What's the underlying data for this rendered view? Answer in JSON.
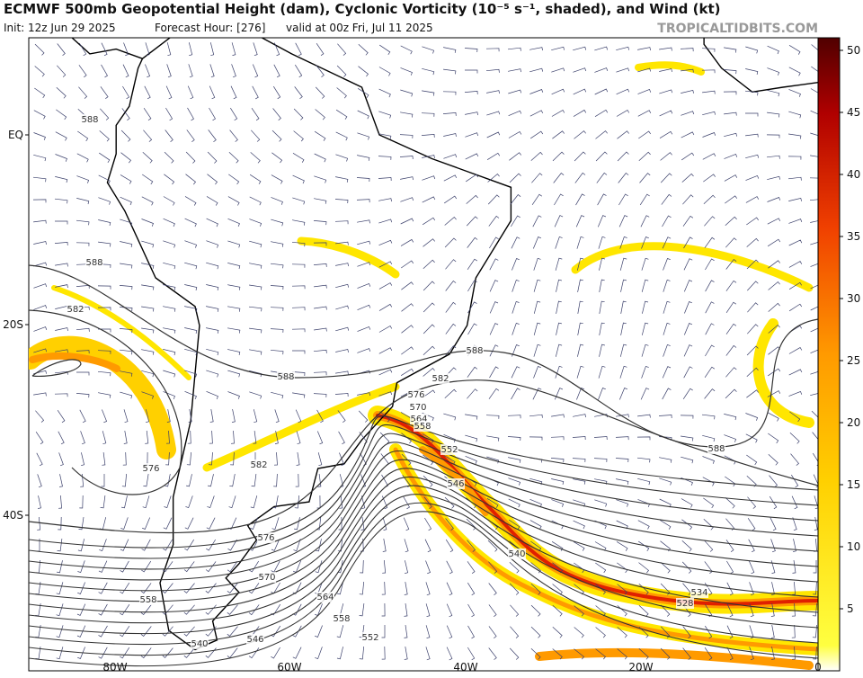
{
  "header": {
    "title": "ECMWF 500mb Geopotential Height (dam), Cyclonic Vorticity (10⁻⁵ s⁻¹, shaded), and Wind (kt)",
    "init": "Init: 12z Jun 29 2025",
    "forecast_hour": "Forecast Hour: [276]",
    "valid": "valid at 00z Fri, Jul 11 2025",
    "site": "TROPICALTIDBITS.COM"
  },
  "latitude_labels": [
    "EQ",
    "20S",
    "40S"
  ],
  "longitude_labels": [
    "80W",
    "60W",
    "40W",
    "20W",
    "0"
  ],
  "colorbar": {
    "ticks": [
      5,
      10,
      15,
      20,
      25,
      30,
      35,
      40,
      45,
      50
    ]
  },
  "contour_labels": [
    588,
    588,
    582,
    576,
    588,
    582,
    576,
    570,
    564,
    558,
    552,
    546,
    540,
    558,
    588,
    582,
    576,
    570,
    564,
    558,
    552,
    546,
    540,
    534,
    528,
    588
  ]
}
